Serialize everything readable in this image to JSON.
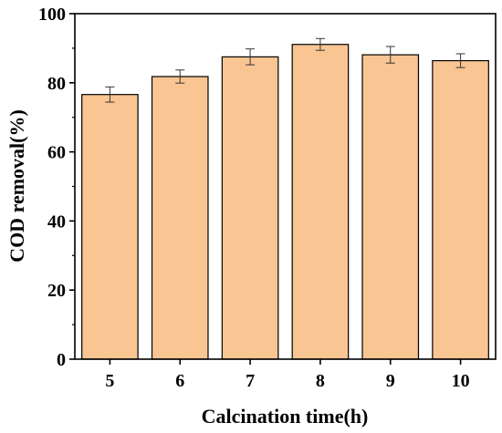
{
  "chart_data": {
    "type": "bar",
    "title": "",
    "xlabel": "Calcination time(h)",
    "ylabel": "COD removal(%)",
    "categories": [
      "5",
      "6",
      "7",
      "8",
      "9",
      "10"
    ],
    "series": [
      {
        "values": [
          76.6,
          81.8,
          87.5,
          91.1,
          88.1,
          86.4
        ],
        "errors": [
          2.2,
          1.9,
          2.3,
          1.7,
          2.4,
          2.0
        ]
      }
    ],
    "ylim": [
      0,
      100
    ],
    "yticks": [
      "0",
      "20",
      "40",
      "60",
      "80",
      "100"
    ],
    "grid": false,
    "legend": "none",
    "colors": {
      "bar_fill": "#F8C593",
      "bar_stroke": "#000000",
      "axis": "#000000"
    }
  }
}
